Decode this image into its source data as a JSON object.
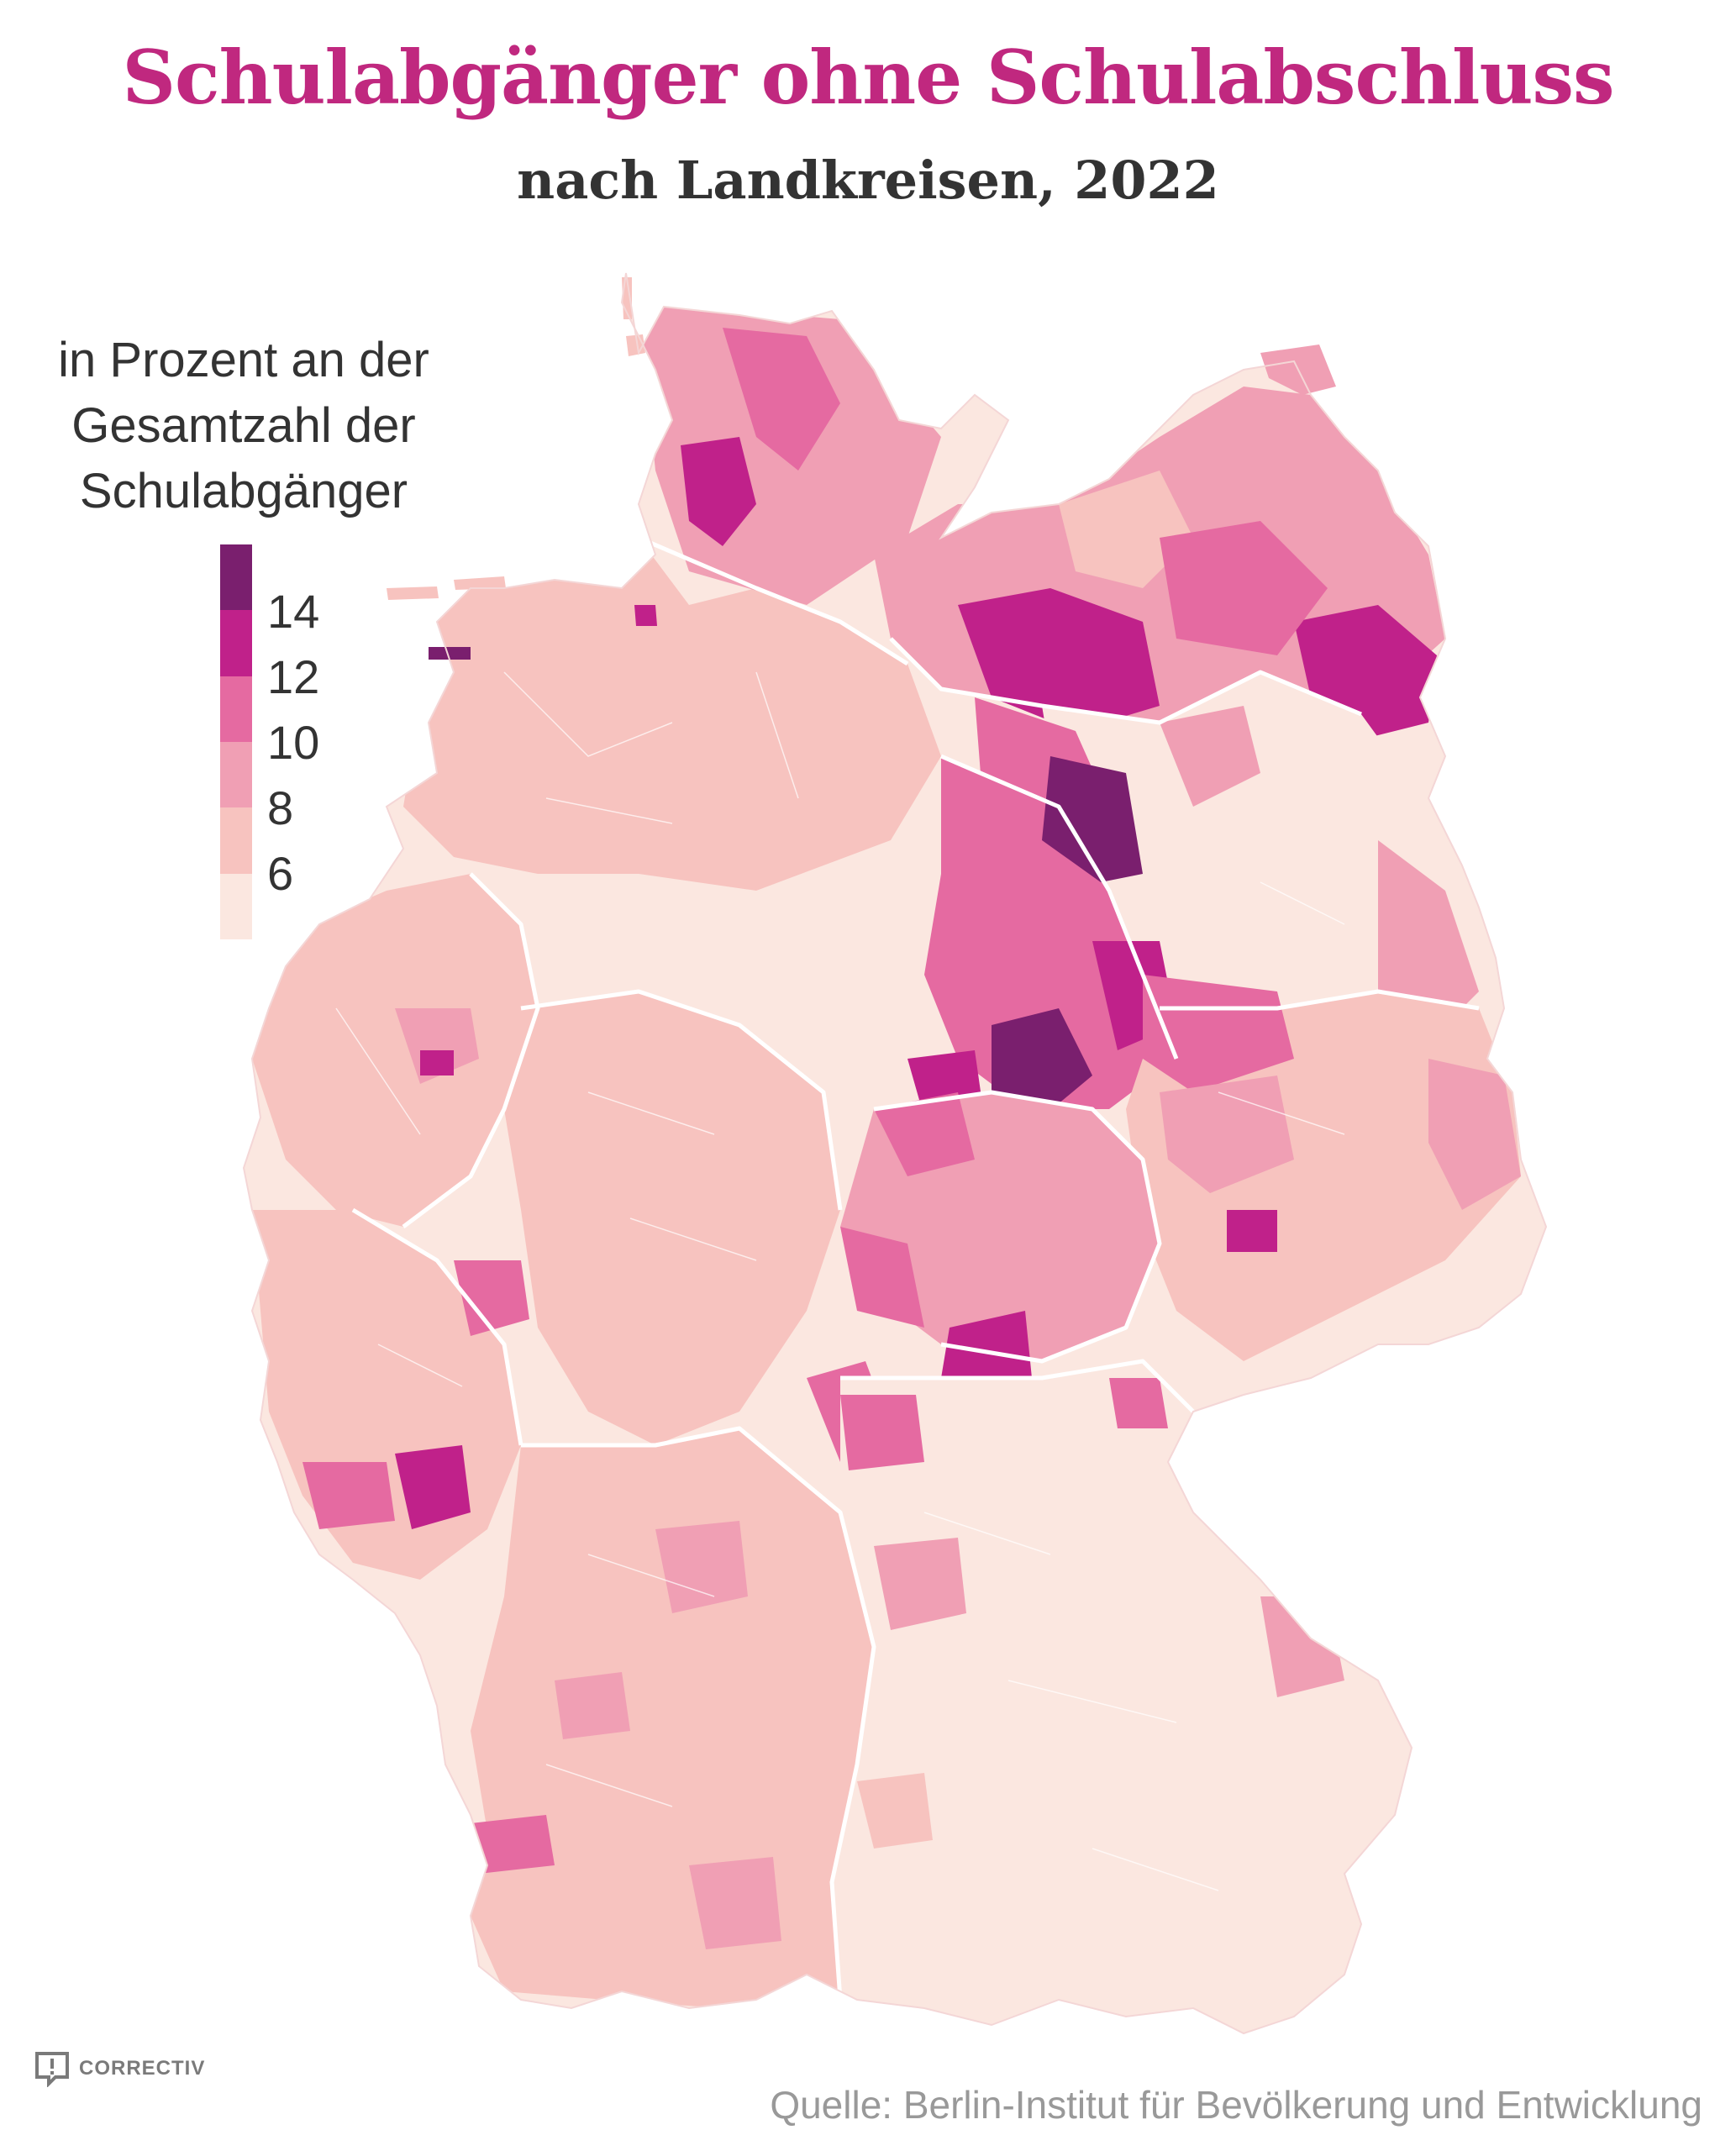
{
  "title": "Schulabgänger ohne Schulabschluss",
  "subtitle": "nach Landkreisen, 2022",
  "legend": {
    "title_lines": [
      "in Prozent an der",
      "Gesamtzahl der",
      "Schulabgänger"
    ],
    "ticks": [
      "14",
      "12",
      "10",
      "8",
      "6"
    ],
    "colors": [
      "#fbe7e0",
      "#f7c3bf",
      "#f09fb4",
      "#e56aa1",
      "#c0218a",
      "#7a1f6e"
    ]
  },
  "source": "Quelle: Berlin-Institut für Bevölkerung und Entwicklung",
  "logo": {
    "text": "CORRECTIV",
    "icon": "correctiv-logo-icon"
  },
  "map_data": {
    "type": "choropleth",
    "region": "Germany",
    "unit": "Landkreise",
    "color_scale": {
      "breaks": [
        6,
        8,
        10,
        12,
        14
      ],
      "colors": [
        "#fbe7e0",
        "#f7c3bf",
        "#f09fb4",
        "#e56aa1",
        "#c0218a",
        "#7a1f6e"
      ]
    }
  }
}
